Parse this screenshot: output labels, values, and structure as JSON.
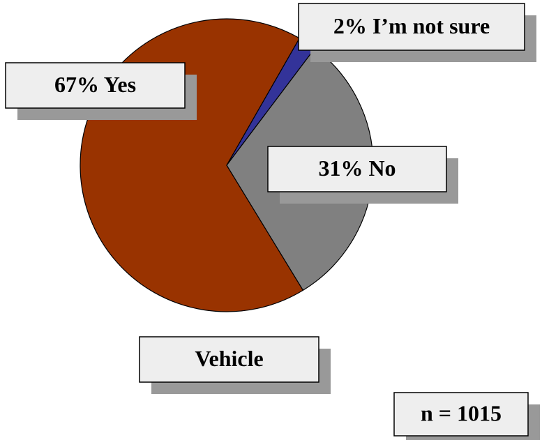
{
  "chart_data": {
    "type": "pie",
    "values": [
      67,
      2,
      31
    ],
    "value_labels": [
      "67% Yes",
      "2% I’m not sure",
      "31% No"
    ],
    "colors": [
      "#993300",
      "#333399",
      "#808080"
    ],
    "title": "Vehicle",
    "annotation": "n = 1015"
  }
}
